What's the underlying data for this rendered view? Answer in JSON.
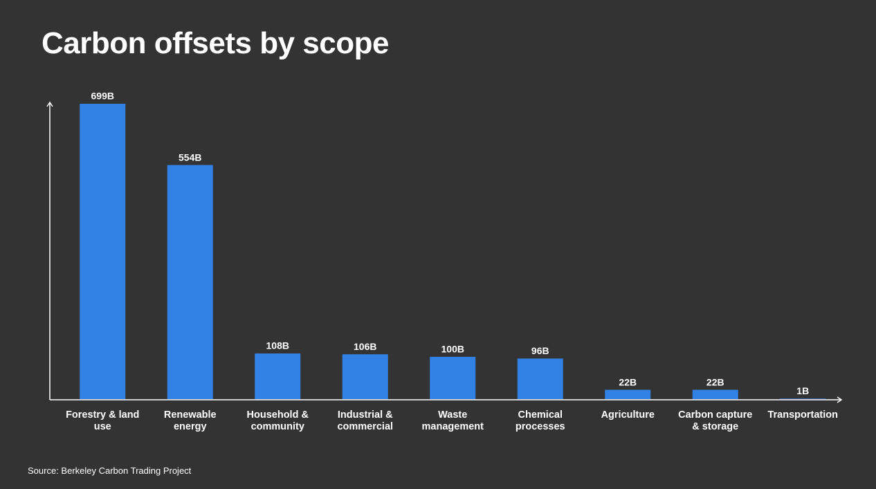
{
  "chart_data": {
    "type": "bar",
    "title": "Carbon offsets by scope",
    "categories": [
      "Forestry & land use",
      "Renewable energy",
      "Household & community",
      "Industrial & commercial",
      "Waste management",
      "Chemical processes",
      "Agriculture",
      "Carbon capture & storage",
      "Transportation"
    ],
    "values": [
      699,
      554,
      108,
      106,
      100,
      96,
      22,
      22,
      1
    ],
    "value_labels": [
      "699B",
      "554B",
      "108B",
      "106B",
      "100B",
      "96B",
      "22B",
      "22B",
      "1B"
    ],
    "color": "#3282e6",
    "ylim": [
      0,
      700
    ],
    "source": "Source: Berkeley Carbon Trading Project"
  }
}
